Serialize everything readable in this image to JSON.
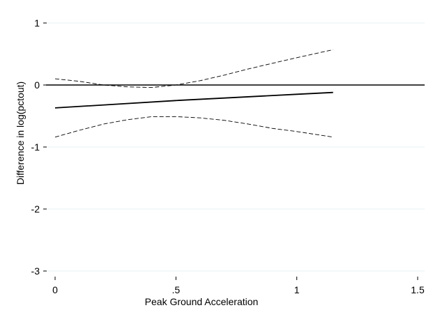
{
  "chart_data": {
    "type": "line",
    "title": "",
    "xlabel": "Peak Ground Acceleration",
    "ylabel": "Difference in log(pctout)",
    "xlim": [
      0,
      1.5
    ],
    "ylim": [
      -3,
      1
    ],
    "xticks": [
      0,
      0.5,
      1,
      1.5
    ],
    "xtick_labels": [
      "0",
      ".5",
      "1",
      "1.5"
    ],
    "yticks": [
      -3,
      -2,
      -1,
      0,
      1
    ],
    "ytick_labels": [
      "-3",
      "-2",
      "-1",
      "0",
      "1"
    ],
    "grid": "horizontal",
    "legend": "none",
    "reference_line": {
      "y": 0
    },
    "series": [
      {
        "role": "estimate",
        "style": "solid",
        "x": [
          0,
          0.25,
          0.5,
          0.75,
          1.0,
          1.15
        ],
        "y": [
          -0.37,
          -0.31,
          -0.25,
          -0.2,
          -0.15,
          -0.12
        ]
      },
      {
        "role": "upper-bound",
        "style": "dashed",
        "x": [
          0,
          0.1,
          0.2,
          0.3,
          0.4,
          0.5,
          0.6,
          0.7,
          0.8,
          0.9,
          1.0,
          1.15
        ],
        "y": [
          0.1,
          0.06,
          0.0,
          -0.03,
          -0.04,
          0.0,
          0.07,
          0.16,
          0.26,
          0.35,
          0.44,
          0.57
        ]
      },
      {
        "role": "lower-bound",
        "style": "dashed",
        "x": [
          0,
          0.1,
          0.2,
          0.3,
          0.4,
          0.5,
          0.6,
          0.7,
          0.8,
          0.9,
          1.0,
          1.15
        ],
        "y": [
          -0.84,
          -0.73,
          -0.63,
          -0.56,
          -0.51,
          -0.51,
          -0.53,
          -0.57,
          -0.63,
          -0.7,
          -0.75,
          -0.84
        ]
      }
    ]
  }
}
